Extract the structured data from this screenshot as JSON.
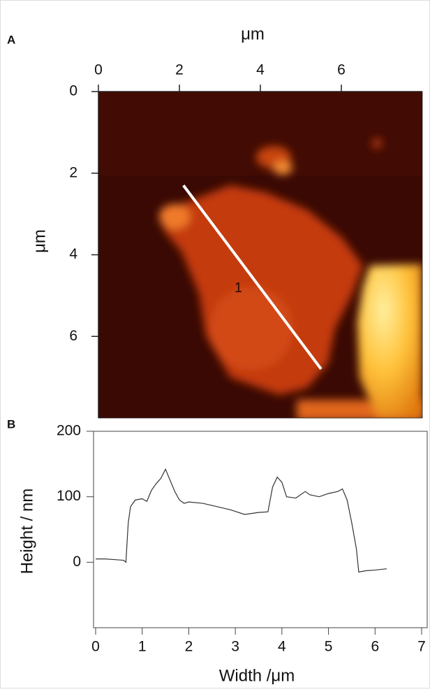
{
  "chart_data": [
    {
      "type": "image",
      "panel_label": "A",
      "x_label": "μm",
      "y_label": "μm",
      "xlim": [
        0,
        8
      ],
      "xticks": [
        0,
        2,
        4,
        6
      ],
      "ylim": [
        0,
        8
      ],
      "y_inverted": true,
      "yticks": [
        0,
        2,
        4,
        6
      ],
      "profile_line": {
        "label": "1",
        "color": "#ffffff",
        "x": [
          2.1,
          5.5
        ],
        "y": [
          2.3,
          6.8
        ]
      }
    },
    {
      "type": "line",
      "panel_label": "B",
      "x_label": "Width /μm",
      "y_label": "Height / nm",
      "xlim": [
        0,
        7
      ],
      "xticks": [
        0,
        1,
        2,
        3,
        4,
        5,
        6,
        7
      ],
      "ylim": [
        -100,
        200
      ],
      "yticks": [
        0,
        100,
        200
      ],
      "x": [
        0,
        0.2,
        0.4,
        0.6,
        0.65,
        0.7,
        0.75,
        0.85,
        1.0,
        1.1,
        1.2,
        1.3,
        1.4,
        1.5,
        1.6,
        1.7,
        1.8,
        1.9,
        2.0,
        2.3,
        2.6,
        2.9,
        3.2,
        3.5,
        3.7,
        3.8,
        3.9,
        4.0,
        4.1,
        4.3,
        4.5,
        4.6,
        4.8,
        5.0,
        5.2,
        5.3,
        5.4,
        5.5,
        5.6,
        5.65,
        5.8,
        6.0,
        6.25
      ],
      "series": [
        {
          "color": "#333333",
          "values": [
            5,
            5,
            4,
            3,
            0,
            60,
            85,
            95,
            97,
            93,
            110,
            120,
            128,
            142,
            125,
            108,
            95,
            90,
            92,
            90,
            85,
            80,
            73,
            76,
            77,
            115,
            130,
            122,
            100,
            98,
            108,
            103,
            100,
            105,
            108,
            112,
            95,
            60,
            20,
            -15,
            -13,
            -12,
            -10
          ]
        }
      ]
    }
  ]
}
